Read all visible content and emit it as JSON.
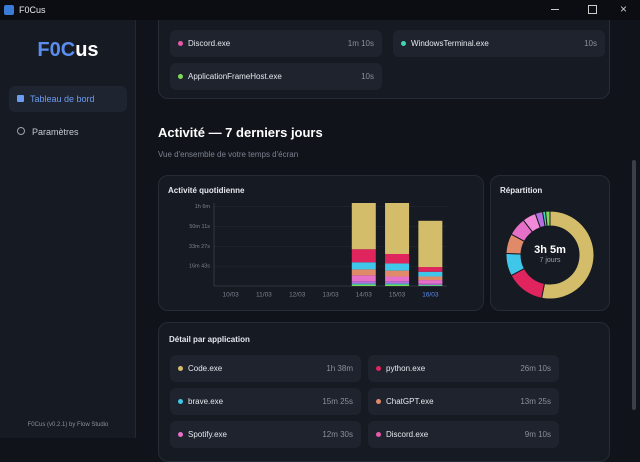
{
  "window": {
    "title": "F0Cus"
  },
  "sidebar": {
    "logo_parts": [
      "F0C",
      "us"
    ],
    "nav": [
      "Tableau de bord",
      "Paramètres"
    ],
    "footer": "F0Cus (v0.2.1) by Flow Studio"
  },
  "top_card": {
    "items": [
      {
        "name": "Discord.exe",
        "time": "1m 10s",
        "color": "#e55aa8"
      },
      {
        "name": "WindowsTerminal.exe",
        "time": "10s",
        "color": "#3ed6b5"
      },
      {
        "name": "ApplicationFrameHost.exe",
        "time": "10s",
        "color": "#7ed957"
      }
    ]
  },
  "section": {
    "title": "Activité — 7 derniers jours",
    "subtitle": "Vue d'ensemble de votre temps d'écran"
  },
  "chart_data": [
    {
      "type": "bar",
      "title": "Activité quotidienne",
      "categories": [
        "10/03",
        "11/03",
        "12/03",
        "13/03",
        "14/03",
        "15/03",
        "16/03"
      ],
      "highlight_index": 6,
      "series": [
        {
          "color": "#7ed957",
          "values": [
            0,
            0,
            0,
            0,
            1,
            1,
            0.5
          ]
        },
        {
          "color": "#3ed6b5",
          "values": [
            0,
            0,
            0,
            0,
            1,
            1,
            0.5
          ]
        },
        {
          "color": "#b46fe0",
          "values": [
            0,
            0,
            0,
            0,
            2,
            2,
            1
          ]
        },
        {
          "color": "#e66fc7",
          "values": [
            0,
            0,
            0,
            0,
            5,
            4,
            3
          ]
        },
        {
          "color": "#e08a6a",
          "values": [
            0,
            0,
            0,
            0,
            5,
            5,
            3
          ]
        },
        {
          "color": "#3fc6e8",
          "values": [
            0,
            0,
            0,
            0,
            6,
            6,
            4
          ]
        },
        {
          "color": "#e0245e",
          "values": [
            0,
            0,
            0,
            0,
            11,
            8,
            4
          ]
        },
        {
          "color": "#d4bd6a",
          "values": [
            0,
            0,
            0,
            0,
            39,
            43,
            39
          ]
        }
      ],
      "ylim": [
        0,
        70
      ],
      "yticks": [
        {
          "value": 16.72,
          "label": "16m 43s"
        },
        {
          "value": 33.45,
          "label": "33m 27s"
        },
        {
          "value": 50.18,
          "label": "50m 11s"
        },
        {
          "value": 66.9,
          "label": "1h 6m"
        }
      ],
      "grid": true
    },
    {
      "type": "donut",
      "title": "Répartition",
      "center_label": "3h 5m",
      "center_sublabel": "7 jours",
      "values": [
        98,
        26.2,
        15.4,
        13.4,
        12.5,
        9.2,
        5,
        2,
        3
      ],
      "colors": [
        "#d4bd6a",
        "#e0245e",
        "#3fc6e8",
        "#e08a6a",
        "#e66fc7",
        "#f08ad8",
        "#b46fe0",
        "#3ed6b5",
        "#7ed957"
      ]
    }
  ],
  "detail": {
    "title": "Détail par application",
    "items": [
      {
        "name": "Code.exe",
        "time": "1h 38m",
        "color": "#d4bd6a"
      },
      {
        "name": "python.exe",
        "time": "26m 10s",
        "color": "#e0245e"
      },
      {
        "name": "brave.exe",
        "time": "15m 25s",
        "color": "#3fc6e8"
      },
      {
        "name": "ChatGPT.exe",
        "time": "13m 25s",
        "color": "#e08a6a"
      },
      {
        "name": "Spotify.exe",
        "time": "12m 30s",
        "color": "#e66fc7"
      },
      {
        "name": "Discord.exe",
        "time": "9m 10s",
        "color": "#e55aa8"
      }
    ]
  }
}
